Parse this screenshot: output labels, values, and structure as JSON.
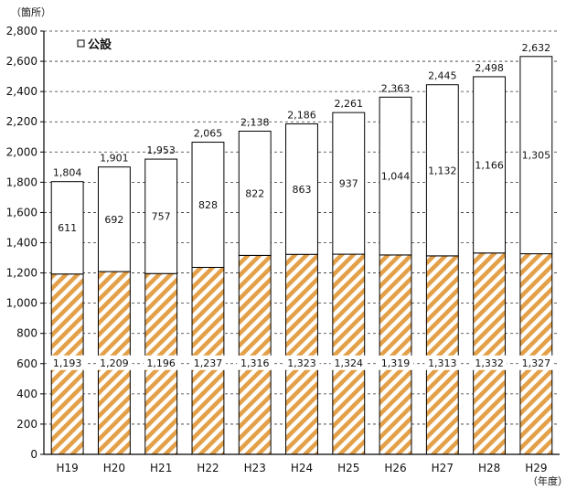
{
  "chart_data": {
    "type": "bar",
    "stacked": true,
    "y_unit_label": "（箇所）",
    "x_unit_label": "（年度）",
    "categories": [
      "H19",
      "H20",
      "H21",
      "H22",
      "H23",
      "H24",
      "H25",
      "H26",
      "H27",
      "H28",
      "H29"
    ],
    "series": [
      {
        "name": "",
        "values": [
          1193,
          1209,
          1196,
          1237,
          1316,
          1323,
          1324,
          1319,
          1313,
          1332,
          1327
        ],
        "labels": [
          "1,193",
          "1,209",
          "1,196",
          "1,237",
          "1,316",
          "1,323",
          "1,324",
          "1,319",
          "1,313",
          "1,332",
          "1,327"
        ],
        "pattern": "diagonal-hatch",
        "color": "#E3A048"
      },
      {
        "name": "公設",
        "values": [
          611,
          692,
          757,
          828,
          822,
          863,
          937,
          1044,
          1132,
          1166,
          1305
        ],
        "labels": [
          "611",
          "692",
          "757",
          "828",
          "822",
          "863",
          "937",
          "1,044",
          "1,132",
          "1,166",
          "1,305"
        ],
        "color": "#ffffff"
      }
    ],
    "totals": [
      1804,
      1901,
      1953,
      2065,
      2138,
      2186,
      2261,
      2363,
      2445,
      2498,
      2632
    ],
    "total_labels": [
      "1,804",
      "1,901",
      "1,953",
      "2,065",
      "2,138",
      "2,186",
      "2,261",
      "2,363",
      "2,445",
      "2,498",
      "2,632"
    ],
    "y_ticks": [
      0,
      200,
      400,
      600,
      800,
      1000,
      1200,
      1400,
      1600,
      1800,
      2000,
      2200,
      2400,
      2600,
      2800
    ],
    "y_tick_labels": [
      "0",
      "200",
      "400",
      "600",
      "800",
      "1,000",
      "1,200",
      "1,400",
      "1,600",
      "1,800",
      "2,000",
      "2,200",
      "2,400",
      "2,600",
      "2,800"
    ],
    "ylim": [
      0,
      2800
    ],
    "grid": "horizontal-dashed",
    "legend": {
      "placement": "top-left",
      "label": "公設"
    }
  }
}
